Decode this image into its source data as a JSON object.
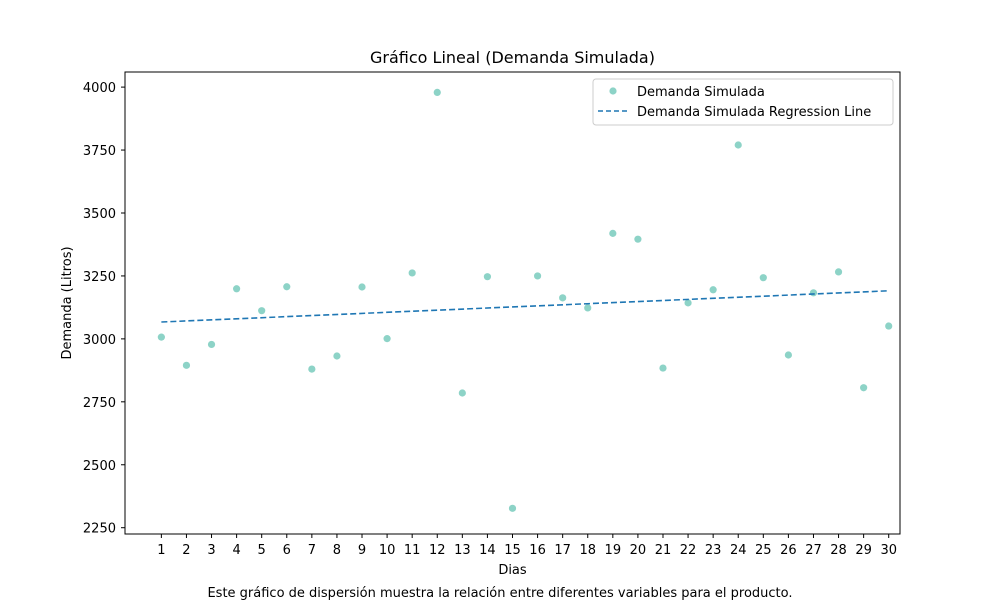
{
  "chart_data": {
    "type": "scatter",
    "title": "Gráfico Lineal (Demanda Simulada)",
    "xlabel": "Dias",
    "ylabel": "Demanda (Litros)",
    "caption": "Este gráfico de dispersión muestra la relación entre diferentes variables para el producto.",
    "xlim": [
      -0.45,
      30.45
    ],
    "ylim": [
      2225,
      4060
    ],
    "x_ticks": [
      1,
      2,
      3,
      4,
      5,
      6,
      7,
      8,
      9,
      10,
      11,
      12,
      13,
      14,
      15,
      16,
      17,
      18,
      19,
      20,
      21,
      22,
      23,
      24,
      25,
      26,
      27,
      28,
      29,
      30
    ],
    "y_ticks": [
      2250,
      2500,
      2750,
      3000,
      3250,
      3500,
      3750,
      4000
    ],
    "grid": false,
    "legend_position": "top-right",
    "series": [
      {
        "name": "Demanda Simulada",
        "kind": "scatter",
        "color": "#8dd3c7",
        "x": [
          1,
          2,
          3,
          4,
          5,
          6,
          7,
          8,
          9,
          10,
          11,
          12,
          13,
          14,
          15,
          16,
          17,
          18,
          19,
          20,
          21,
          22,
          23,
          24,
          25,
          26,
          27,
          28,
          29,
          30
        ],
        "y": [
          3007,
          2895,
          2978,
          3199,
          3112,
          3207,
          2880,
          2932,
          3206,
          3001,
          3262,
          3979,
          2785,
          3247,
          2327,
          3250,
          3163,
          3123,
          3419,
          3396,
          2884,
          3143,
          3195,
          3770,
          3243,
          2936,
          3183,
          3266,
          2806,
          3051
        ]
      },
      {
        "name": "Demanda Simulada Regression Line",
        "kind": "line",
        "style": "dashed",
        "color": "#1f77b4",
        "x": [
          1,
          30
        ],
        "y": [
          3067,
          3191
        ]
      }
    ]
  }
}
